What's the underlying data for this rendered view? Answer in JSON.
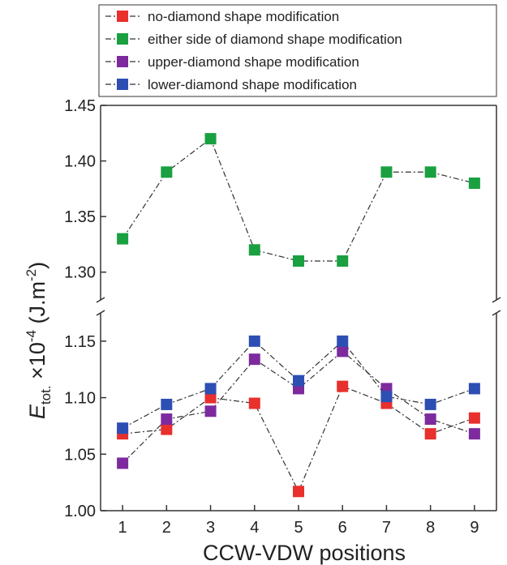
{
  "chart_data": {
    "type": "line",
    "x": [
      1,
      2,
      3,
      4,
      5,
      6,
      7,
      8,
      9
    ],
    "xlabel": "CCW-VDW positions",
    "ylabel_main": "E",
    "ylabel_sub": "tot.",
    "ylabel_rest": " ×10",
    "ylabel_exp": "-4",
    "ylabel_unit": " (J.m",
    "ylabel_unit_exp": "-2",
    "ylabel_close": ")",
    "xlim": [
      0.5,
      9.5
    ],
    "ylim_upper": [
      1.275,
      1.45
    ],
    "ylim_lower": [
      1.0,
      1.175
    ],
    "axis_break": true,
    "y_ticks_upper": [
      "1.30",
      "1.35",
      "1.40",
      "1.45"
    ],
    "y_ticks_lower": [
      "1.00",
      "1.05",
      "1.10",
      "1.15"
    ],
    "x_ticks": [
      "1",
      "2",
      "3",
      "4",
      "5",
      "6",
      "7",
      "8",
      "9"
    ],
    "legend_position": "top",
    "series": [
      {
        "name": "no-diamond shape modification",
        "color": "#e8302c",
        "marker": "square",
        "values": [
          1.068,
          1.072,
          1.1,
          1.095,
          1.017,
          1.11,
          1.095,
          1.068,
          1.082
        ]
      },
      {
        "name": "either side of diamond shape modification",
        "color": "#1aa040",
        "marker": "square",
        "values": [
          1.33,
          1.39,
          1.42,
          1.32,
          1.31,
          1.31,
          1.39,
          1.39,
          1.38
        ]
      },
      {
        "name": "upper-diamond shape modification",
        "color": "#7d2a9e",
        "marker": "square",
        "values": [
          1.042,
          1.081,
          1.088,
          1.134,
          1.108,
          1.141,
          1.108,
          1.081,
          1.068
        ]
      },
      {
        "name": "lower-diamond shape modification",
        "color": "#2d4fb3",
        "marker": "square",
        "values": [
          1.073,
          1.094,
          1.108,
          1.15,
          1.115,
          1.15,
          1.101,
          1.094,
          1.108
        ]
      }
    ]
  }
}
